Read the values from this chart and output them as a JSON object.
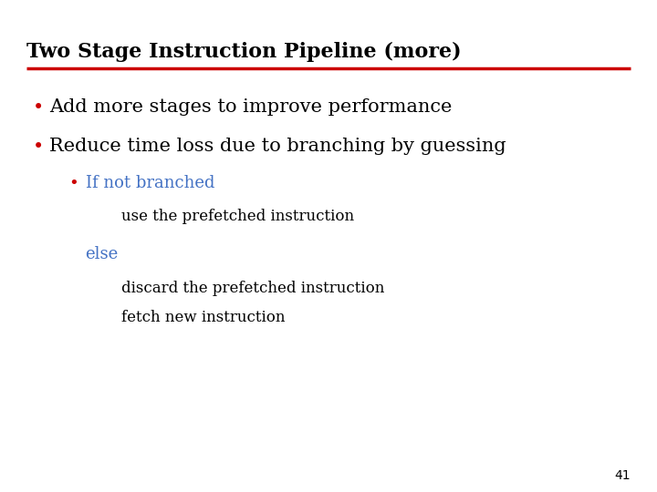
{
  "title": "Two Stage Instruction Pipeline (more)",
  "title_color": "#000000",
  "title_fontsize": 16,
  "title_font": "DejaVu Serif",
  "underline_color": "#cc0000",
  "background_color": "#ffffff",
  "bullet_color": "#cc0000",
  "bullet1": "Add more stages to improve performance",
  "bullet2": "Reduce time loss due to branching by guessing",
  "sub_bullet_color": "#4472c4",
  "sub_bullet_text": "If not branched",
  "line1": "use the prefetched instruction",
  "else_text": "else",
  "line2": "discard the prefetched instruction",
  "line3": "fetch new instruction",
  "main_bullet_fontsize": 15,
  "sub_fontsize": 13,
  "indent_fontsize": 12,
  "page_number": "41"
}
